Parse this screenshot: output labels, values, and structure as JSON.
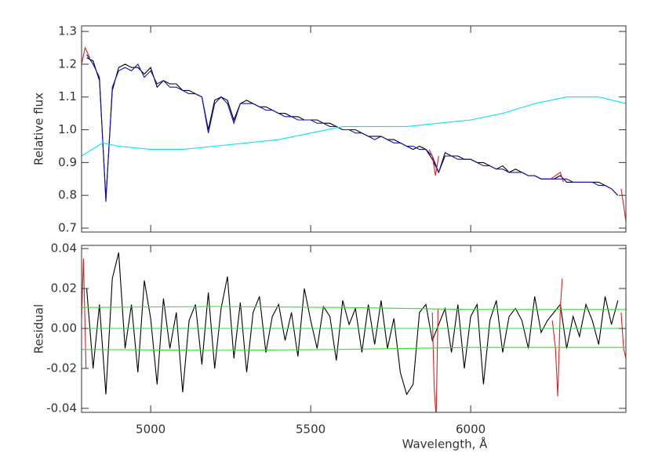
{
  "chart_data": [
    {
      "type": "line",
      "y_label": "Relative flux",
      "xlim": [
        4784,
        6485
      ],
      "ylim": [
        0.688,
        1.317
      ],
      "yticks": [
        0.7,
        0.8,
        0.9,
        {
          "value": 1,
          "label": "1.0"
        },
        1.1,
        1.2,
        1.3
      ],
      "x": [
        4800,
        4820,
        4840,
        4860,
        4880,
        4900,
        4920,
        4940,
        4960,
        4980,
        5000,
        5020,
        5040,
        5060,
        5080,
        5100,
        5120,
        5140,
        5160,
        5180,
        5200,
        5220,
        5240,
        5260,
        5280,
        5300,
        5320,
        5340,
        5360,
        5380,
        5400,
        5420,
        5440,
        5460,
        5480,
        5500,
        5520,
        5540,
        5560,
        5580,
        5600,
        5620,
        5640,
        5660,
        5680,
        5700,
        5720,
        5740,
        5760,
        5780,
        5800,
        5820,
        5840,
        5860,
        5880,
        5900,
        5920,
        5940,
        5960,
        5980,
        6000,
        6020,
        6040,
        6060,
        6080,
        6100,
        6120,
        6140,
        6160,
        6180,
        6200,
        6220,
        6240,
        6260,
        6280,
        6300,
        6320,
        6340,
        6360,
        6380,
        6400,
        6420,
        6440,
        6460
      ],
      "series": [
        {
          "color": "#000000",
          "values": [
            1.22,
            1.21,
            1.15,
            0.79,
            1.12,
            1.19,
            1.2,
            1.19,
            1.19,
            1.17,
            1.19,
            1.13,
            1.15,
            1.14,
            1.14,
            1.12,
            1.12,
            1.11,
            1.1,
            1.0,
            1.09,
            1.1,
            1.09,
            1.03,
            1.08,
            1.09,
            1.08,
            1.07,
            1.07,
            1.06,
            1.05,
            1.05,
            1.04,
            1.04,
            1.03,
            1.03,
            1.03,
            1.02,
            1.02,
            1.01,
            1.0,
            1.0,
            1.0,
            0.99,
            0.98,
            0.98,
            0.98,
            0.97,
            0.97,
            0.96,
            0.95,
            0.94,
            0.95,
            0.94,
            0.91,
            0.87,
            0.93,
            0.92,
            0.92,
            0.91,
            0.91,
            0.9,
            0.9,
            0.89,
            0.88,
            0.89,
            0.87,
            0.88,
            0.87,
            0.86,
            0.86,
            0.85,
            0.85,
            0.85,
            0.86,
            0.84,
            0.84,
            0.84,
            0.84,
            0.84,
            0.84,
            0.83,
            0.82,
            0.8
          ]
        },
        {
          "color": "#1010c0",
          "values": [
            1.23,
            1.2,
            1.16,
            0.78,
            1.13,
            1.18,
            1.19,
            1.18,
            1.2,
            1.16,
            1.18,
            1.14,
            1.15,
            1.13,
            1.13,
            1.12,
            1.11,
            1.11,
            1.1,
            0.99,
            1.08,
            1.1,
            1.08,
            1.02,
            1.08,
            1.08,
            1.08,
            1.07,
            1.06,
            1.06,
            1.05,
            1.04,
            1.04,
            1.03,
            1.03,
            1.03,
            1.02,
            1.02,
            1.01,
            1.01,
            1.0,
            1.0,
            0.99,
            0.99,
            0.98,
            0.97,
            0.98,
            0.97,
            0.96,
            0.96,
            0.95,
            0.95,
            0.94,
            0.94,
            0.92,
            0.87,
            0.92,
            0.92,
            0.91,
            0.91,
            0.91,
            0.9,
            0.89,
            0.89,
            0.88,
            0.88,
            0.87,
            0.87,
            0.87,
            0.86,
            0.86,
            0.85,
            0.85,
            0.85,
            0.85,
            0.85,
            0.84,
            0.84,
            0.84,
            0.84,
            0.83,
            0.83,
            0.82,
            0.8
          ]
        },
        {
          "color": "#00e5ee",
          "x": [
            4784,
            4800,
            4850,
            4900,
            5000,
            5100,
            5200,
            5300,
            5400,
            5500,
            5600,
            5700,
            5800,
            5900,
            6000,
            6100,
            6200,
            6300,
            6350,
            6400,
            6485
          ],
          "values": [
            0.92,
            0.93,
            0.96,
            0.95,
            0.94,
            0.94,
            0.95,
            0.96,
            0.97,
            0.99,
            1.01,
            1.01,
            1.01,
            1.02,
            1.03,
            1.05,
            1.08,
            1.1,
            1.1,
            1.1,
            1.08
          ]
        },
        {
          "color": "#e02020",
          "x": [
            4784,
            4795,
            4810,
            4830,
            5870,
            5880,
            5890,
            5900,
            5910,
            6250,
            6265,
            6280,
            6290,
            6300,
            6470,
            6478,
            6485
          ],
          "values": [
            1.2,
            1.25,
            1.22,
            null,
            0.94,
            0.92,
            0.86,
            0.92,
            null,
            0.85,
            0.86,
            0.87,
            0.84,
            null,
            0.82,
            0.77,
            0.72
          ]
        }
      ]
    },
    {
      "type": "line",
      "y_label": "Residual",
      "x_label": "Wavelength, Å",
      "xlim": [
        4784,
        6485
      ],
      "ylim": [
        -0.042,
        0.0416
      ],
      "xticks": [
        5000,
        5500,
        6000
      ],
      "yticks": [
        -0.04,
        -0.02,
        {
          "value": 0,
          "label": "0.00"
        },
        0.02,
        0.04
      ],
      "x": [
        4800,
        4820,
        4840,
        4860,
        4880,
        4900,
        4920,
        4940,
        4960,
        4980,
        5000,
        5020,
        5040,
        5060,
        5080,
        5100,
        5120,
        5140,
        5160,
        5180,
        5200,
        5220,
        5240,
        5260,
        5280,
        5300,
        5320,
        5340,
        5360,
        5380,
        5400,
        5420,
        5440,
        5460,
        5480,
        5500,
        5520,
        5540,
        5560,
        5580,
        5600,
        5620,
        5640,
        5660,
        5680,
        5700,
        5720,
        5740,
        5760,
        5780,
        5800,
        5820,
        5840,
        5860,
        5880,
        5900,
        5920,
        5940,
        5960,
        5980,
        6000,
        6020,
        6040,
        6060,
        6080,
        6100,
        6120,
        6140,
        6160,
        6180,
        6200,
        6220,
        6240,
        6260,
        6280,
        6300,
        6320,
        6340,
        6360,
        6380,
        6400,
        6420,
        6440,
        6460
      ],
      "series": [
        {
          "color": "#000000",
          "values": [
            0.02,
            -0.02,
            0.012,
            -0.033,
            0.025,
            0.038,
            -0.01,
            0.012,
            -0.022,
            0.024,
            0.005,
            -0.028,
            0.015,
            -0.01,
            0.008,
            -0.032,
            0.004,
            0.012,
            -0.018,
            0.018,
            -0.02,
            0.01,
            0.026,
            -0.015,
            0.013,
            -0.022,
            0.008,
            0.016,
            -0.012,
            0.006,
            0.012,
            -0.006,
            0.008,
            -0.014,
            0.02,
            0.004,
            -0.01,
            0.011,
            0.006,
            -0.016,
            0.014,
            0.002,
            0.01,
            -0.012,
            0.012,
            -0.008,
            0.014,
            -0.01,
            0.005,
            -0.022,
            -0.033,
            -0.028,
            0.008,
            0.012,
            -0.006,
            0.002,
            0.01,
            -0.012,
            0.012,
            -0.02,
            0.006,
            0.012,
            -0.028,
            0.004,
            0.014,
            -0.012,
            0.006,
            0.01,
            0.004,
            -0.01,
            0.016,
            -0.002,
            0.004,
            0.008,
            0.012,
            -0.01,
            0.006,
            -0.004,
            0.012,
            0.004,
            -0.008,
            0.016,
            0.002,
            0.014
          ]
        },
        {
          "color": "#e02020",
          "x": [
            4784,
            4790,
            4798,
            4806,
            5880,
            5886,
            5892,
            5898,
            5906,
            6255,
            6265,
            6272,
            6280,
            6286,
            6295,
            6470,
            6478,
            6485
          ],
          "values": [
            0.005,
            0.035,
            -0.02,
            null,
            0.008,
            -0.03,
            -0.045,
            0.01,
            null,
            0.004,
            -0.01,
            -0.034,
            0.01,
            0.025,
            null,
            0.008,
            -0.01,
            -0.015
          ]
        },
        {
          "color": "#33dd33",
          "x": [
            4784,
            5200,
            5600,
            6000,
            6485
          ],
          "values": [
            0.0105,
            0.011,
            0.0105,
            0.0095,
            0.0095
          ]
        },
        {
          "color": "#33dd33",
          "x": [
            4784,
            6485
          ],
          "values": [
            0,
            0
          ]
        },
        {
          "color": "#33dd33",
          "x": [
            4784,
            5200,
            5600,
            6000,
            6485
          ],
          "values": [
            -0.0105,
            -0.011,
            -0.0105,
            -0.0095,
            -0.0095
          ]
        }
      ]
    }
  ]
}
